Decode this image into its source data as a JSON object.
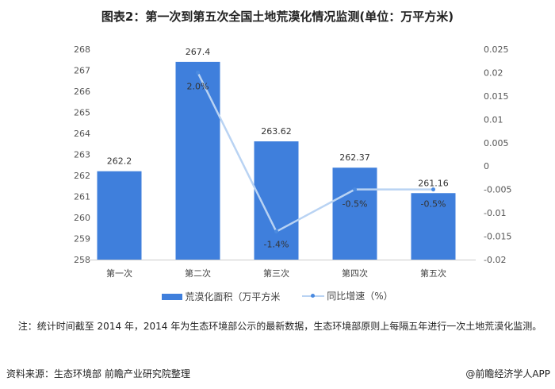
{
  "title": "图表2：第一次到第五次全国土地荒漠化情况监测(单位：万平方米)",
  "chart_data": {
    "type": "bar+line",
    "categories": [
      "第一次",
      "第二次",
      "第三次",
      "第四次",
      "第五次"
    ],
    "series": [
      {
        "name": "荒漠化面积（万平方米",
        "type": "bar",
        "axis": "left",
        "values": [
          262.2,
          267.4,
          263.62,
          262.37,
          261.16
        ],
        "labels": [
          "262.2",
          "267.4",
          "263.62",
          "262.37",
          "261.16"
        ],
        "color": "#3f7fdc"
      },
      {
        "name": "同比增速（%）",
        "type": "line",
        "axis": "right",
        "values": [
          null,
          0.02,
          -0.014,
          -0.005,
          -0.005
        ],
        "labels": [
          "",
          "2.0%",
          "-1.4%",
          "-0.5%",
          "-0.5%"
        ],
        "color": "#b9d3f3"
      }
    ],
    "left_axis": {
      "ylim": [
        258,
        268
      ],
      "ticks": [
        "258",
        "259",
        "260",
        "261",
        "262",
        "263",
        "264",
        "265",
        "266",
        "267",
        "268"
      ]
    },
    "right_axis": {
      "ylim": [
        -0.02,
        0.025
      ],
      "ticks": [
        "-0.02",
        "-0.015",
        "-0.01",
        "-0.005",
        "0",
        "0.005",
        "0.01",
        "0.015",
        "0.02",
        "0.025"
      ]
    },
    "grid": false,
    "legend": "bottom"
  },
  "note": "注：统计时间截至 2014 年，2014 年为生态环境部公示的最新数据，生态环境部原则上每隔五年进行一次土地荒漠化监测。",
  "source": "资料来源：生态环境部 前瞻产业研究院整理",
  "brand": "@前瞻经济学人APP"
}
